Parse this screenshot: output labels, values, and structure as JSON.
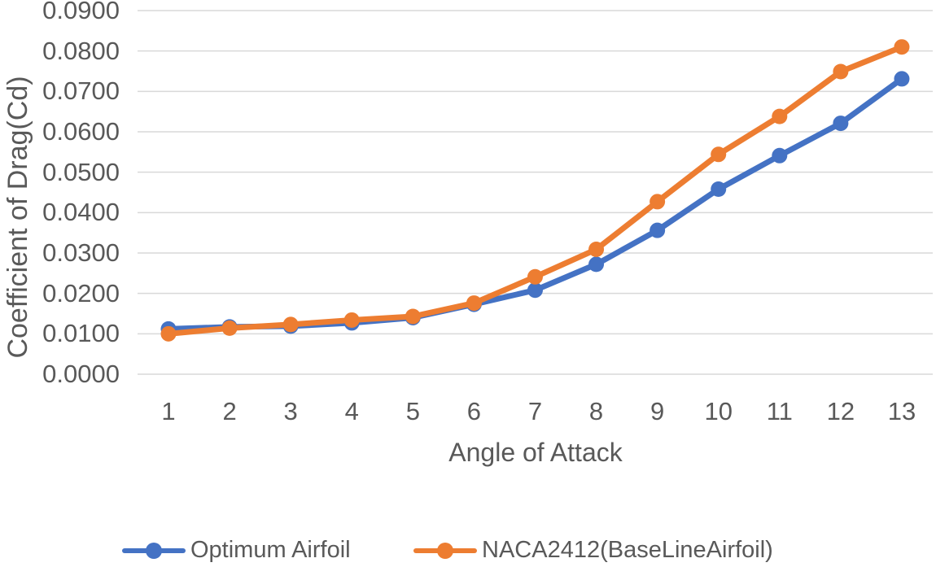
{
  "chart_data": {
    "type": "line",
    "xlabel": "Angle of Attack",
    "ylabel": "Coefficient of Drag(Cd)",
    "x": [
      1,
      2,
      3,
      4,
      5,
      6,
      7,
      8,
      9,
      10,
      11,
      12,
      13
    ],
    "series": [
      {
        "name": "Optimum Airfoil",
        "color": "#4472C4",
        "values": [
          0.0112,
          0.0117,
          0.0119,
          0.0127,
          0.014,
          0.0173,
          0.0208,
          0.0272,
          0.0356,
          0.0458,
          0.0541,
          0.0621,
          0.0731
        ]
      },
      {
        "name": "NACA2412(BaseLineAirfoil)",
        "color": "#ED7D31",
        "values": [
          0.01,
          0.0114,
          0.0123,
          0.0134,
          0.0143,
          0.0176,
          0.0241,
          0.0309,
          0.0427,
          0.0544,
          0.0638,
          0.0749,
          0.081
        ]
      }
    ],
    "ylim": [
      0,
      0.09
    ],
    "y_tick_step": 0.01,
    "y_tick_labels": [
      "0.0000",
      "0.0100",
      "0.0200",
      "0.0300",
      "0.0400",
      "0.0500",
      "0.0600",
      "0.0700",
      "0.0800",
      "0.0900"
    ],
    "grid": "horizontal",
    "legend_position": "bottom",
    "colors": {
      "grid": "#D9D9D9",
      "axis_text": "#595959",
      "background": "#FFFFFF"
    }
  }
}
